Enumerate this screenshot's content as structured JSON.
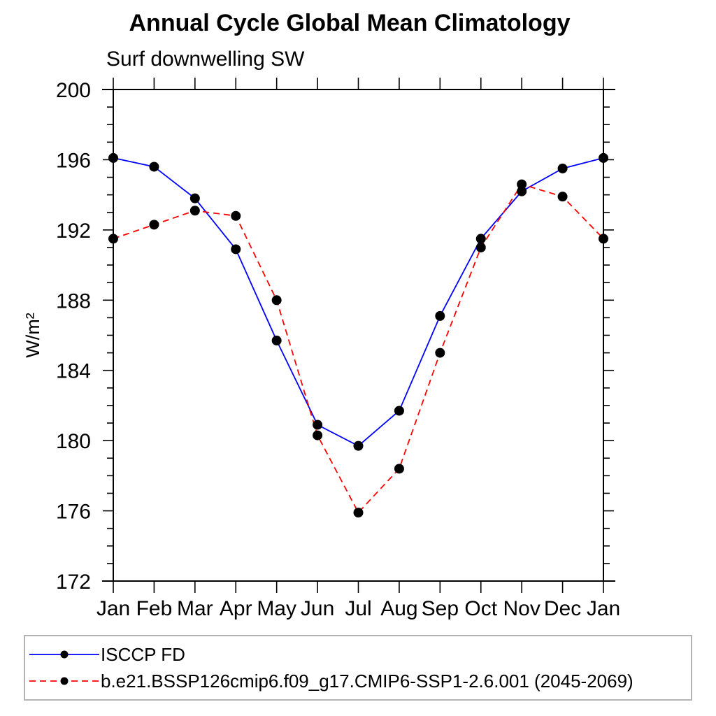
{
  "chart_data": {
    "type": "line",
    "title": "Annual Cycle Global Mean Climatology",
    "subtitle": "Surf downwelling SW",
    "ylabel": "W/m²",
    "xlabel": "",
    "categories": [
      "Jan",
      "Feb",
      "Mar",
      "Apr",
      "May",
      "Jun",
      "Jul",
      "Aug",
      "Sep",
      "Oct",
      "Nov",
      "Dec",
      "Jan"
    ],
    "ylim": [
      172,
      200
    ],
    "ytick_major_step": 4,
    "ytick_minor_step": 1,
    "grid": false,
    "legend_position": "bottom",
    "marker": {
      "shape": "circle",
      "color": "#000000"
    },
    "axis_color": "#000000",
    "series": [
      {
        "name": "ISCCP FD",
        "color": "#0000ff",
        "line_style": "solid",
        "values": [
          196.1,
          195.6,
          193.8,
          190.9,
          185.7,
          180.9,
          179.7,
          181.7,
          187.1,
          191.5,
          194.2,
          195.5,
          196.1
        ]
      },
      {
        "name": "b.e21.BSSP126cmip6.f09_g17.CMIP6-SSP1-2.6.001 (2045-2069)",
        "color": "#ff0000",
        "line_style": "dashed",
        "values": [
          191.5,
          192.3,
          193.1,
          192.8,
          188.0,
          180.3,
          175.9,
          178.4,
          185.0,
          191.0,
          194.6,
          193.9,
          191.5
        ]
      }
    ]
  }
}
